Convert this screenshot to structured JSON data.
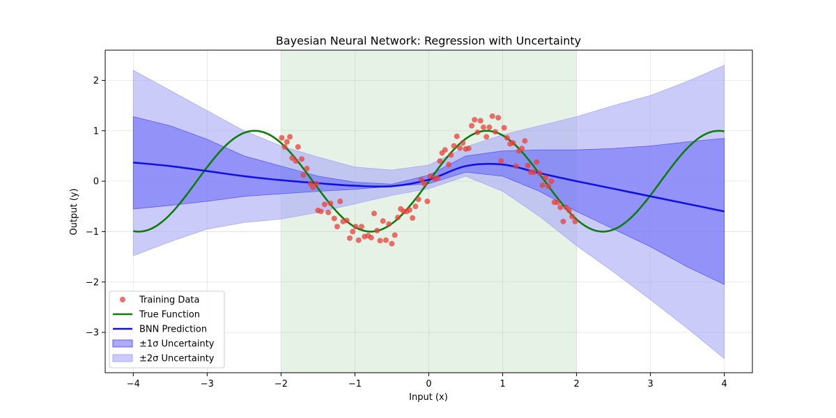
{
  "chart_data": {
    "type": "line",
    "title": "Bayesian Neural Network: Regression with Uncertainty",
    "xlabel": "Input (x)",
    "ylabel": "Output (y)",
    "xlim": [
      -4.38,
      4.38
    ],
    "ylim": [
      -3.8,
      2.6
    ],
    "xticks": [
      -4,
      -3,
      -2,
      -1,
      0,
      1,
      2,
      3,
      4
    ],
    "yticks": [
      -3,
      -2,
      -1,
      0,
      1,
      2
    ],
    "grid": true,
    "legend_position": "lower-left",
    "training_region": [
      -2,
      2
    ],
    "colors": {
      "training_data": "#e8403a",
      "true_function": "#0a7d0a",
      "prediction": "#1010e6",
      "band1": "#5a5af5",
      "band2": "#a9a9f7",
      "region": "#cfe8cf"
    },
    "x": [
      -4.0,
      -3.5,
      -3.0,
      -2.5,
      -2.0,
      -1.5,
      -1.0,
      -0.5,
      0.0,
      0.5,
      1.0,
      1.5,
      2.0,
      2.5,
      3.0,
      3.5,
      4.0
    ],
    "series": [
      {
        "name": "BNN Prediction",
        "values": [
          0.37,
          0.3,
          0.2,
          0.1,
          0.02,
          -0.04,
          -0.09,
          -0.1,
          0.03,
          0.3,
          0.33,
          0.16,
          0.0,
          -0.15,
          -0.3,
          -0.45,
          -0.6
        ]
      },
      {
        "name": "±1σ Uncertainty",
        "lower": [
          -0.55,
          -0.48,
          -0.4,
          -0.3,
          -0.25,
          -0.2,
          -0.16,
          -0.1,
          -0.05,
          0.18,
          0.1,
          -0.2,
          -0.6,
          -0.95,
          -1.3,
          -1.7,
          -2.05
        ],
        "upper": [
          1.28,
          1.1,
          0.83,
          0.5,
          0.3,
          0.1,
          -0.02,
          -0.06,
          0.12,
          0.5,
          0.6,
          0.62,
          0.62,
          0.65,
          0.7,
          0.78,
          0.85
        ]
      },
      {
        "name": "±2σ Uncertainty",
        "lower": [
          -1.48,
          -1.2,
          -0.95,
          -0.82,
          -0.75,
          -0.62,
          -0.45,
          -0.28,
          -0.15,
          0.1,
          -0.2,
          -0.7,
          -1.28,
          -1.8,
          -2.35,
          -2.92,
          -3.52
        ],
        "upper": [
          2.2,
          1.8,
          1.4,
          1.0,
          0.7,
          0.48,
          0.28,
          0.22,
          0.32,
          0.68,
          0.92,
          1.1,
          1.28,
          1.5,
          1.7,
          1.98,
          2.3
        ]
      },
      {
        "name": "True Function",
        "function": "sin(2x)"
      },
      {
        "name": "Training Data",
        "points": [
          [
            -1.99,
            0.86
          ],
          [
            -1.95,
            0.68
          ],
          [
            -1.92,
            0.78
          ],
          [
            -1.88,
            0.88
          ],
          [
            -1.85,
            0.46
          ],
          [
            -1.8,
            0.4
          ],
          [
            -1.77,
            0.68
          ],
          [
            -1.72,
            0.44
          ],
          [
            -1.7,
            0.12
          ],
          [
            -1.65,
            0.25
          ],
          [
            -1.6,
            -0.05
          ],
          [
            -1.57,
            -0.12
          ],
          [
            -1.52,
            -0.05
          ],
          [
            -1.5,
            -0.58
          ],
          [
            -1.46,
            -0.6
          ],
          [
            -1.41,
            -0.46
          ],
          [
            -1.36,
            -0.62
          ],
          [
            -1.33,
            -0.44
          ],
          [
            -1.28,
            -0.74
          ],
          [
            -1.24,
            -0.9
          ],
          [
            -1.2,
            -0.4
          ],
          [
            -1.16,
            -0.8
          ],
          [
            -1.11,
            -0.78
          ],
          [
            -1.07,
            -1.13
          ],
          [
            -1.03,
            -1.0
          ],
          [
            -0.99,
            -0.9
          ],
          [
            -0.95,
            -1.17
          ],
          [
            -0.91,
            -0.9
          ],
          [
            -0.87,
            -1.1
          ],
          [
            -0.82,
            -1.08
          ],
          [
            -0.78,
            -1.12
          ],
          [
            -0.74,
            -0.64
          ],
          [
            -0.7,
            -0.98
          ],
          [
            -0.66,
            -1.18
          ],
          [
            -0.62,
            -0.79
          ],
          [
            -0.58,
            -1.17
          ],
          [
            -0.54,
            -0.85
          ],
          [
            -0.5,
            -1.24
          ],
          [
            -0.46,
            -1.07
          ],
          [
            -0.42,
            -0.72
          ],
          [
            -0.38,
            -0.55
          ],
          [
            -0.34,
            -0.6
          ],
          [
            -0.3,
            -0.6
          ],
          [
            -0.26,
            -0.57
          ],
          [
            -0.22,
            -0.73
          ],
          [
            -0.18,
            -0.5
          ],
          [
            -0.14,
            -0.36
          ],
          [
            -0.1,
            0.03
          ],
          [
            -0.06,
            -0.05
          ],
          [
            -0.02,
            -0.4
          ],
          [
            0.02,
            0.1
          ],
          [
            0.08,
            0.05
          ],
          [
            0.12,
            0.06
          ],
          [
            0.15,
            0.4
          ],
          [
            0.18,
            0.56
          ],
          [
            0.22,
            0.62
          ],
          [
            0.27,
            0.33
          ],
          [
            0.3,
            0.52
          ],
          [
            0.34,
            0.7
          ],
          [
            0.38,
            0.89
          ],
          [
            0.42,
            0.66
          ],
          [
            0.46,
            0.76
          ],
          [
            0.5,
            0.64
          ],
          [
            0.54,
            0.65
          ],
          [
            0.58,
            1.1
          ],
          [
            0.62,
            1.22
          ],
          [
            0.66,
            0.97
          ],
          [
            0.7,
            1.2
          ],
          [
            0.74,
            1.07
          ],
          [
            0.78,
            0.88
          ],
          [
            0.82,
            1.07
          ],
          [
            0.86,
            1.29
          ],
          [
            0.9,
            0.98
          ],
          [
            0.94,
            1.26
          ],
          [
            0.98,
            0.4
          ],
          [
            1.02,
            1.06
          ],
          [
            1.06,
            0.86
          ],
          [
            1.1,
            0.74
          ],
          [
            1.14,
            0.76
          ],
          [
            1.18,
            0.3
          ],
          [
            1.22,
            0.6
          ],
          [
            1.26,
            0.65
          ],
          [
            1.3,
            0.8
          ],
          [
            1.34,
            0.31
          ],
          [
            1.38,
            0.18
          ],
          [
            1.42,
            0.18
          ],
          [
            1.46,
            0.38
          ],
          [
            1.5,
            0.16
          ],
          [
            1.54,
            -0.08
          ],
          [
            1.58,
            0.07
          ],
          [
            1.62,
            -0.1
          ],
          [
            1.66,
            0.0
          ],
          [
            1.7,
            -0.42
          ],
          [
            1.74,
            -0.42
          ],
          [
            1.78,
            -0.52
          ],
          [
            1.82,
            -0.8
          ],
          [
            1.86,
            -0.52
          ],
          [
            1.9,
            -0.58
          ],
          [
            1.94,
            -0.7
          ],
          [
            1.98,
            -0.8
          ]
        ]
      }
    ],
    "legend": [
      "Training Data",
      "True Function",
      "BNN Prediction",
      "±1σ Uncertainty",
      "±2σ Uncertainty"
    ]
  }
}
